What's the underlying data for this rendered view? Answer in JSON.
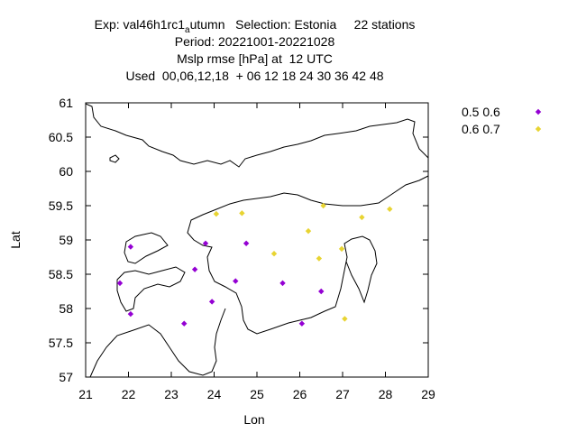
{
  "chart_data": {
    "type": "scatter",
    "title_lines": [
      "Exp: val46h1rc1_autumn   Selection: Estonia     22 stations",
      "Period: 20221001-20221028",
      "Mslp rmse [hPa] at  12 UTC",
      "Used  00,06,12,18  + 06 12 18 24 30 36 42 48"
    ],
    "title_exp": "Exp: val46h1rc1",
    "title_sub": "a",
    "title_rest": "utumn   Selection: Estonia     22 stations",
    "xlabel": "Lon",
    "ylabel": "Lat",
    "xlim": [
      21,
      29
    ],
    "ylim": [
      57,
      61
    ],
    "xticks": [
      "21",
      "22",
      "23",
      "24",
      "25",
      "26",
      "27",
      "28",
      "29"
    ],
    "yticks": [
      "57",
      "57.5",
      "58",
      "58.5",
      "59",
      "59.5",
      "60",
      "60.5",
      "61"
    ],
    "legend_position": "outside-right",
    "series": [
      {
        "name": "0.5 0.6",
        "color": "#9400d3",
        "points": [
          [
            22.05,
            58.9
          ],
          [
            23.8,
            58.95
          ],
          [
            24.75,
            58.95
          ],
          [
            21.8,
            58.37
          ],
          [
            23.55,
            58.57
          ],
          [
            24.5,
            58.4
          ],
          [
            25.6,
            58.37
          ],
          [
            23.95,
            58.1
          ],
          [
            22.05,
            57.92
          ],
          [
            23.3,
            57.78
          ],
          [
            26.05,
            57.78
          ],
          [
            26.5,
            58.25
          ]
        ]
      },
      {
        "name": "0.6 0.7",
        "color": "#e8d432",
        "points": [
          [
            24.05,
            59.38
          ],
          [
            24.65,
            59.39
          ],
          [
            26.55,
            59.5
          ],
          [
            27.45,
            59.33
          ],
          [
            28.1,
            59.45
          ],
          [
            26.2,
            59.13
          ],
          [
            25.4,
            58.8
          ],
          [
            26.45,
            58.73
          ],
          [
            26.98,
            58.87
          ],
          [
            27.05,
            57.85
          ]
        ]
      }
    ]
  }
}
